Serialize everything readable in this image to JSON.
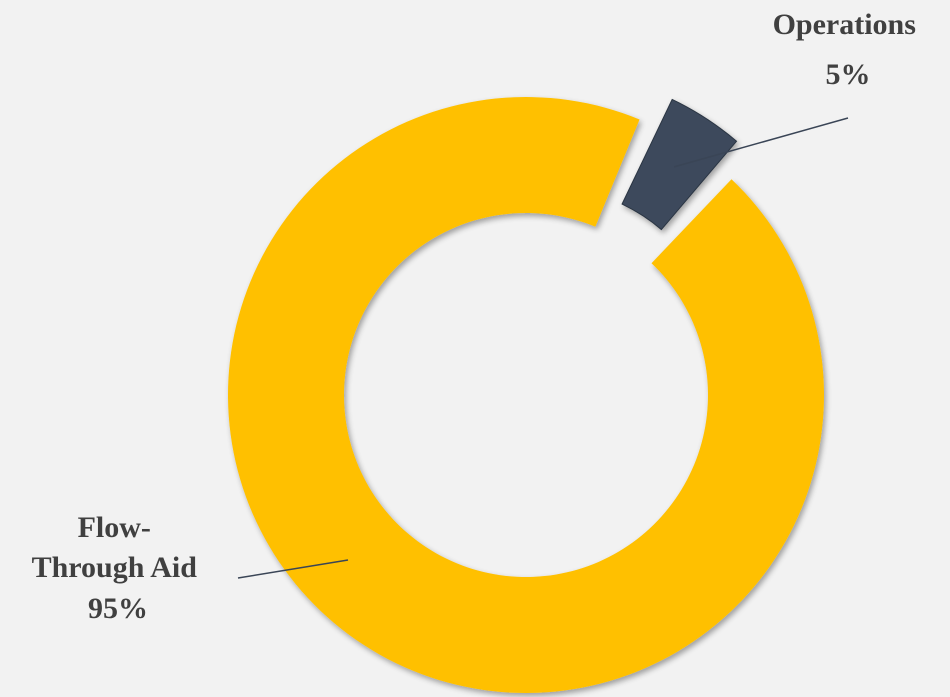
{
  "chart_data": {
    "type": "pie",
    "variant": "donut",
    "slices": [
      {
        "label": "Flow-Through Aid",
        "label_lines": [
          "Flow-",
          "Through Aid"
        ],
        "value_label": "95%",
        "value": 95,
        "color": "#ffc000",
        "exploded": false
      },
      {
        "label": "Operations",
        "label_lines": [
          "Operations"
        ],
        "value_label": "5%",
        "value": 5,
        "color": "#3d4a5c",
        "exploded": true
      }
    ],
    "title": "",
    "legend": "none",
    "background": "#f2f2f2"
  }
}
